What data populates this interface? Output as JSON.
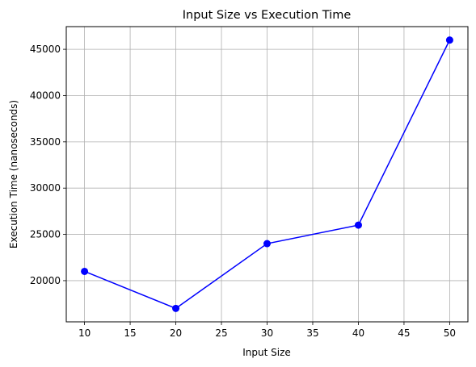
{
  "chart_data": {
    "type": "line",
    "title": "Input Size vs Execution Time",
    "xlabel": "Input Size",
    "ylabel": "Execution Time (nanoseconds)",
    "xlim": [
      8,
      52
    ],
    "ylim": [
      15550,
      47450
    ],
    "xticks": [
      10,
      15,
      20,
      25,
      30,
      35,
      40,
      45,
      50
    ],
    "yticks": [
      20000,
      25000,
      30000,
      35000,
      40000,
      45000
    ],
    "grid": true,
    "series": [
      {
        "x": [
          10,
          20,
          30,
          40,
          50
        ],
        "values": [
          21000,
          17000,
          24000,
          26000,
          46000
        ],
        "color": "#0000ff",
        "marker": "circle"
      }
    ]
  }
}
